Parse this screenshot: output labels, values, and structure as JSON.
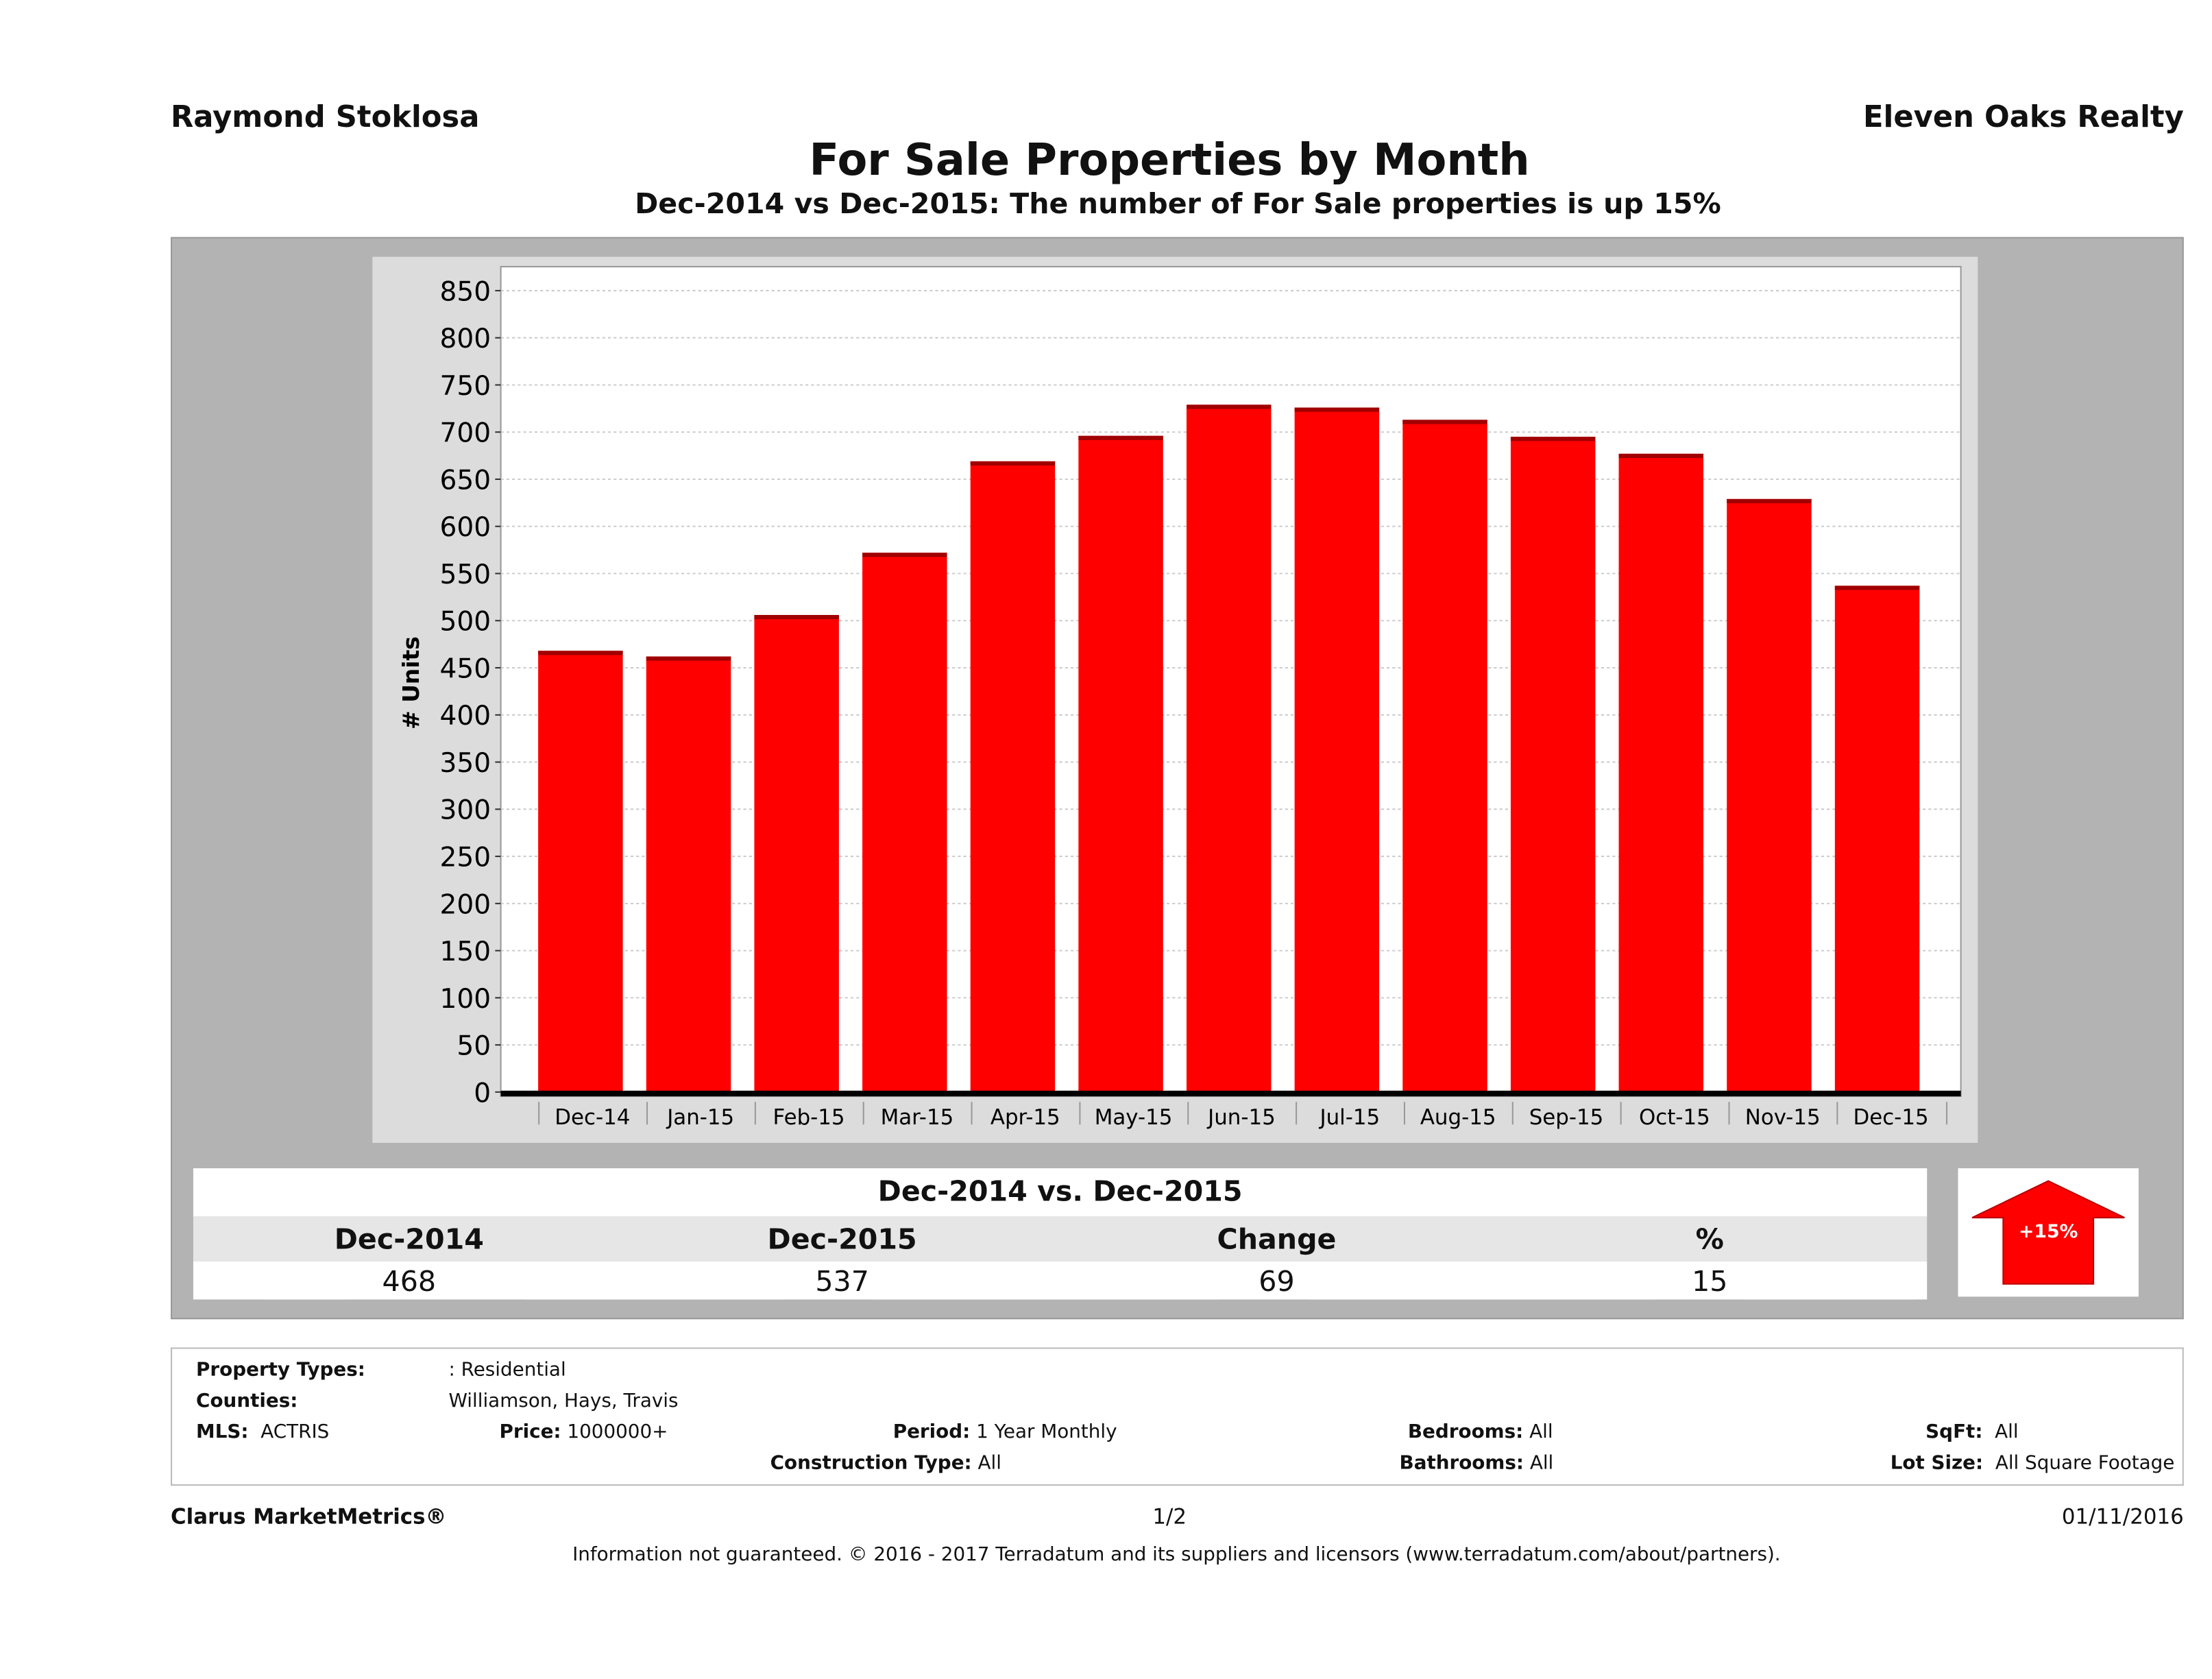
{
  "header": {
    "agent": "Raymond Stoklosa",
    "brokerage": "Eleven Oaks Realty",
    "title": "For Sale Properties by Month",
    "subtitle": "Dec-2014 vs Dec-2015: The number of For Sale  properties is up 15%"
  },
  "chart_data": {
    "type": "bar",
    "ylabel": "# Units",
    "xlabel": "",
    "ylim": [
      0,
      850
    ],
    "yticks": [
      0,
      50,
      100,
      150,
      200,
      250,
      300,
      350,
      400,
      450,
      500,
      550,
      600,
      650,
      700,
      750,
      800,
      850
    ],
    "grid": true,
    "categories": [
      "Dec-14",
      "Jan-15",
      "Feb-15",
      "Mar-15",
      "Apr-15",
      "May-15",
      "Jun-15",
      "Jul-15",
      "Aug-15",
      "Sep-15",
      "Oct-15",
      "Nov-15",
      "Dec-15"
    ],
    "values": [
      468,
      462,
      506,
      572,
      669,
      696,
      729,
      726,
      713,
      695,
      677,
      629,
      537
    ],
    "bar_color": "#ff0000"
  },
  "summary": {
    "title": "Dec-2014 vs. Dec-2015",
    "headers": [
      "Dec-2014",
      "Dec-2015",
      "Change",
      "%"
    ],
    "values": [
      "468",
      "537",
      "69",
      "15"
    ],
    "badge": "+15%",
    "arrow_color": "#ff0000"
  },
  "criteria": {
    "property_types_label": "Property Types:",
    "property_types": ": Residential",
    "counties_label": "Counties:",
    "counties": "Williamson, Hays, Travis",
    "mls_label": "MLS:",
    "mls": "ACTRIS",
    "price_label": "Price:",
    "price": "1000000+",
    "period_label": "Period:",
    "period": "1 Year Monthly",
    "construction_label": "Construction Type:",
    "construction": "All",
    "bedrooms_label": "Bedrooms:",
    "bedrooms": "All",
    "bathrooms_label": "Bathrooms:",
    "bathrooms": "All",
    "sqft_label": "SqFt:",
    "sqft": "All",
    "lotsize_label": "Lot Size:",
    "lotsize": "All Square Footage"
  },
  "footer": {
    "product": "Clarus MarketMetrics®",
    "page": "1/2",
    "date": "01/11/2016",
    "disclaimer": "Information not guaranteed. © 2016 - 2017 Terradatum and its suppliers and licensors (www.terradatum.com/about/partners)."
  }
}
